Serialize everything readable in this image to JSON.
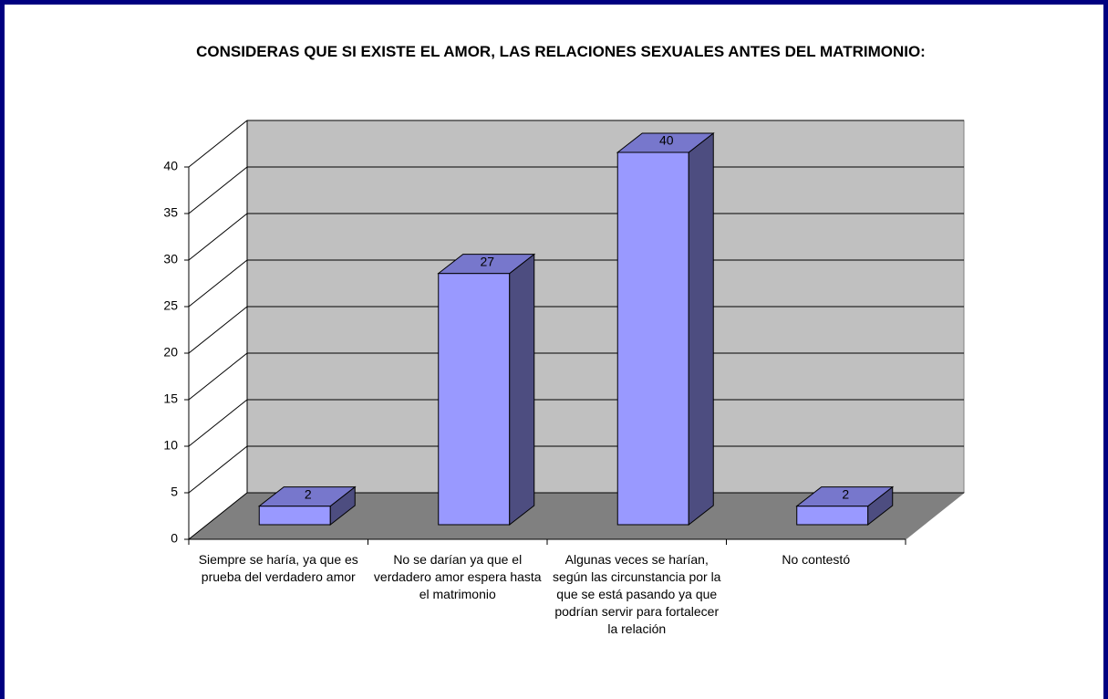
{
  "chart_data": {
    "type": "bar3d",
    "title": "CONSIDERAS QUE SI EXISTE EL AMOR, LAS RELACIONES SEXUALES ANTES DEL MATRIMONIO:",
    "categories": [
      "Siempre se haría, ya que es prueba del verdadero amor",
      "No se darían ya que el verdadero amor espera hasta el matrimonio",
      "Algunas veces se harían, según las circunstancia por la que se está pasando ya que podrían servir para fortalecer la relación",
      "No contestó"
    ],
    "values": [
      2,
      27,
      40,
      2
    ],
    "color": "#9999ff",
    "ylim": [
      0,
      40
    ],
    "yticks": [
      0,
      5,
      10,
      15,
      20,
      25,
      30,
      35,
      40
    ],
    "grid": true
  }
}
